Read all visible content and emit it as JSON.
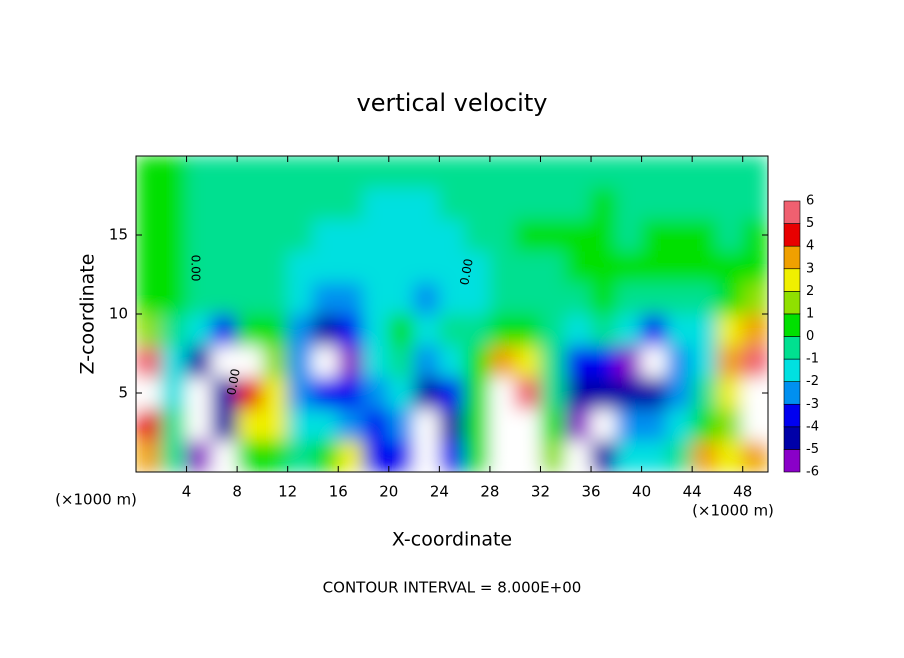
{
  "chart_data": {
    "type": "contour",
    "title": "vertical velocity",
    "x_label": "X-coordinate",
    "y_label": "Z-coordinate",
    "x_unit": "(×1000 m)",
    "y_unit": "(×1000 m)",
    "note": "CONTOUR INTERVAL = 8.000E+00",
    "contour_labels": [
      "0.00",
      "0.00",
      "0.00"
    ],
    "xlim": [
      0,
      50
    ],
    "ylim": [
      0,
      20
    ],
    "xticks": [
      4,
      8,
      12,
      16,
      20,
      24,
      28,
      32,
      36,
      40,
      44,
      48
    ],
    "yticks": [
      5,
      10,
      15
    ],
    "x": [
      1,
      3,
      5,
      7,
      9,
      11,
      13,
      15,
      17,
      19,
      21,
      23,
      25,
      27,
      29,
      31,
      33,
      35,
      37,
      39,
      41,
      43,
      45,
      47,
      49
    ],
    "z": [
      1,
      3,
      5,
      7,
      9,
      11,
      13,
      15,
      17,
      19
    ],
    "values": [
      [
        4,
        5,
        8,
        6,
        2,
        1,
        1,
        1,
        0.5,
        0.5
      ],
      [
        0,
        0,
        -1,
        -1,
        0,
        1,
        1,
        1,
        1,
        1
      ],
      [
        -5,
        -8,
        -8,
        -4,
        -1,
        0,
        0,
        0,
        0,
        0
      ],
      [
        -8,
        -4,
        -4,
        -8,
        -3,
        0,
        0,
        0,
        0,
        0
      ],
      [
        1,
        3,
        5,
        8,
        1,
        0,
        0,
        0,
        0,
        0
      ],
      [
        1,
        3,
        3,
        2,
        1,
        0,
        0,
        0,
        0,
        0
      ],
      [
        0,
        -1,
        -2,
        -2,
        -2,
        -1,
        -1,
        0,
        0,
        0
      ],
      [
        1,
        -1,
        -3,
        -8,
        -4,
        -2,
        -1,
        -1,
        0,
        0
      ],
      [
        3,
        -2,
        -3,
        -5,
        -3,
        -2,
        -1,
        -1,
        0,
        0
      ],
      [
        -3,
        -3,
        -2,
        -1,
        -1,
        -1,
        -1,
        -1,
        -1,
        0
      ],
      [
        -3,
        -2,
        -1,
        0,
        1,
        -1,
        -1,
        -1,
        -1,
        0
      ],
      [
        -8,
        -8,
        -4,
        -2,
        -1,
        -2,
        -1,
        -1,
        -1,
        0
      ],
      [
        -3,
        -4,
        -3,
        -1,
        0,
        -1,
        -1,
        -1,
        0,
        0
      ],
      [
        1,
        1,
        1,
        1,
        0,
        -1,
        -1,
        0,
        0,
        0
      ],
      [
        8,
        8,
        8,
        4,
        1,
        0,
        0,
        0,
        0,
        0
      ],
      [
        8,
        8,
        6,
        3,
        1,
        0,
        0,
        1,
        0,
        0
      ],
      [
        2,
        1,
        0,
        0,
        0,
        0,
        0,
        1,
        0,
        0
      ],
      [
        -8,
        -5,
        -4,
        -3,
        -1,
        0,
        1,
        1,
        0,
        0
      ],
      [
        -4,
        -8,
        -4,
        -3,
        0,
        1,
        1,
        1,
        1,
        0
      ],
      [
        -1,
        -2,
        -4,
        -5,
        -1,
        0,
        1,
        0,
        0,
        0
      ],
      [
        -1,
        -2,
        -4,
        -8,
        -3,
        0,
        1,
        1,
        0,
        0
      ],
      [
        0,
        -1,
        -2,
        -2,
        -1,
        0,
        1,
        1,
        0,
        0
      ],
      [
        4,
        1,
        0,
        -1,
        -1,
        0,
        1,
        1,
        0,
        0
      ],
      [
        3,
        2,
        3,
        4,
        3,
        1,
        1,
        0,
        0,
        0
      ],
      [
        4,
        8,
        8,
        6,
        4,
        2,
        1,
        1,
        0,
        0
      ]
    ],
    "levels": [
      -6,
      -5,
      -4,
      -3,
      -2,
      -1,
      0,
      1,
      2,
      3,
      4,
      5,
      6
    ],
    "colors": [
      "#8a00c8",
      "#0000a8",
      "#0000f0",
      "#0090f0",
      "#00e0e0",
      "#00e090",
      "#00e000",
      "#90e000",
      "#f0f000",
      "#f0a000",
      "#e80000",
      "#f06070"
    ],
    "overflow_color": "#ffffff"
  }
}
